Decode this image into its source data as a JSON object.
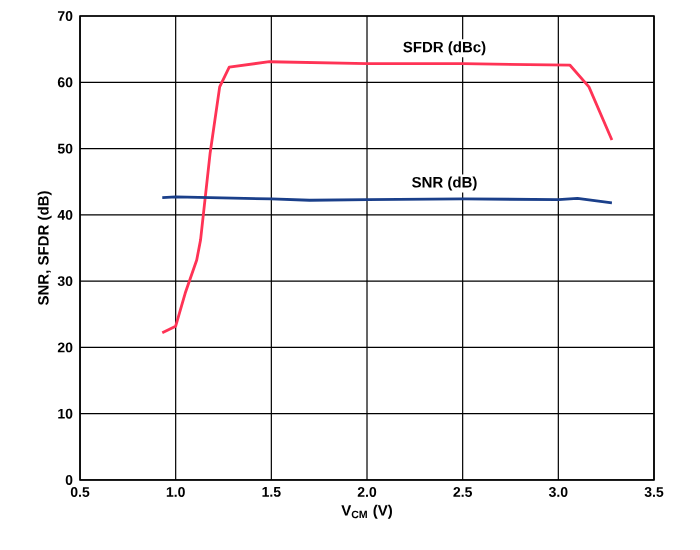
{
  "chart_data": {
    "type": "line",
    "xlabel": "V$_{CM}$ (V)",
    "ylabel": "SNR, SFDR (dB)",
    "xlim": [
      0.5,
      3.5
    ],
    "xticks": [
      {
        "value": 0.5,
        "label": "0.5"
      },
      {
        "value": 1.0,
        "label": "1.0"
      },
      {
        "value": 1.5,
        "label": "1.5"
      },
      {
        "value": 2.0,
        "label": "2.0"
      },
      {
        "value": 2.5,
        "label": "2.5"
      },
      {
        "value": 3.0,
        "label": "3.0"
      },
      {
        "value": 3.5,
        "label": "3.5"
      }
    ],
    "ylim": [
      0,
      70
    ],
    "yticks": [
      0,
      10,
      20,
      30,
      40,
      50,
      60,
      70
    ],
    "grid": true,
    "series": [
      {
        "name": "SFDR (dBc)",
        "color": "#ff3355",
        "x": [
          0.93,
          1.0,
          1.05,
          1.11,
          1.13,
          1.18,
          1.23,
          1.28,
          1.49,
          2.0,
          2.5,
          3.06,
          3.16,
          3.28
        ],
        "values": [
          22.2,
          23.2,
          28.2,
          33.2,
          36.2,
          49.3,
          59.3,
          62.3,
          63.1,
          62.8,
          62.8,
          62.6,
          59.3,
          51.3
        ]
      },
      {
        "name": "SNR (dB)",
        "color": "#1a3f8a",
        "x": [
          0.93,
          1.0,
          1.5,
          1.7,
          2.0,
          2.5,
          3.0,
          3.1,
          3.2,
          3.28
        ],
        "values": [
          42.6,
          42.7,
          42.4,
          42.2,
          42.3,
          42.4,
          42.3,
          42.5,
          42.1,
          41.8
        ]
      }
    ]
  }
}
